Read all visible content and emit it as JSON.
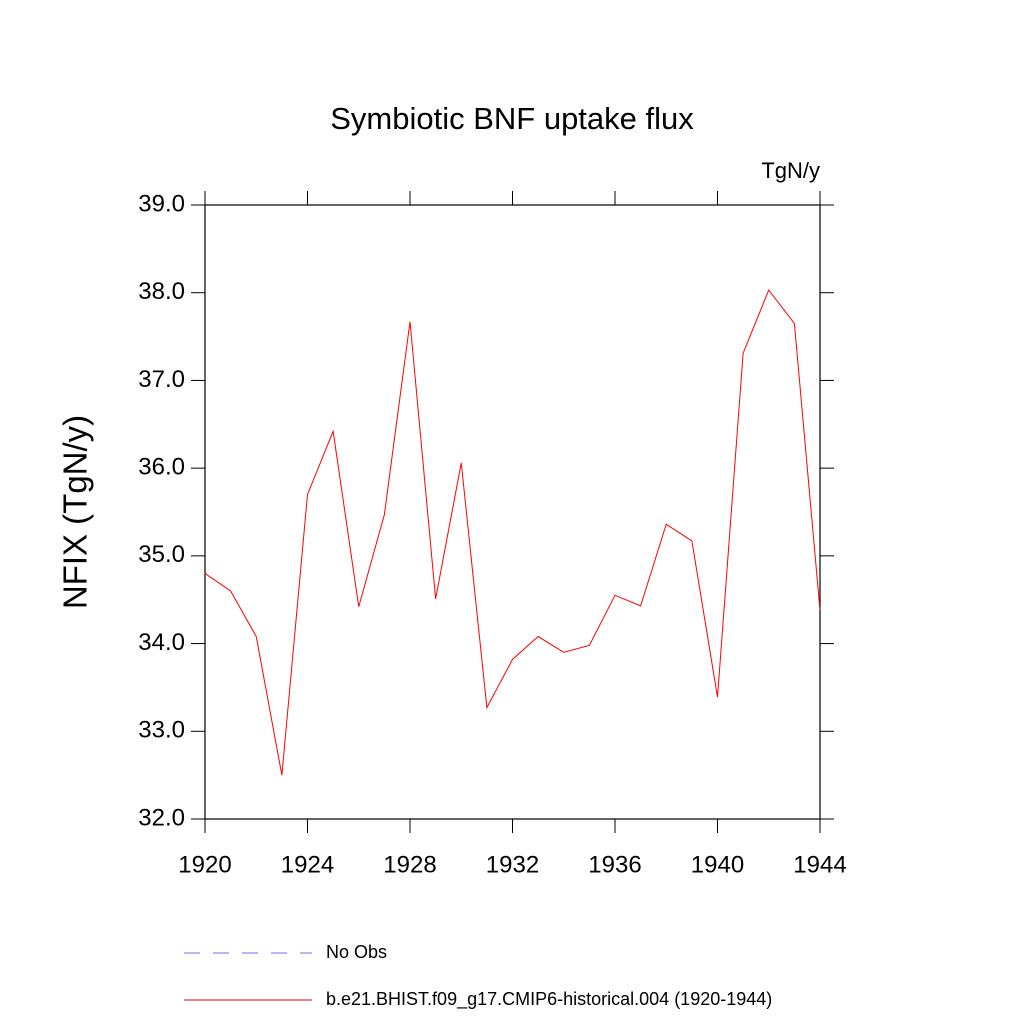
{
  "chart_data": {
    "type": "line",
    "title": "Symbiotic BNF uptake flux",
    "units": "TgN/y",
    "y_label": "NFIX  (TgN/y)",
    "x": [
      1920,
      1921,
      1922,
      1923,
      1924,
      1925,
      1926,
      1927,
      1928,
      1929,
      1930,
      1931,
      1932,
      1933,
      1934,
      1935,
      1936,
      1937,
      1938,
      1939,
      1940,
      1941,
      1942,
      1943,
      1944
    ],
    "series": [
      {
        "name": "b.e21.BHIST.f09_g17.CMIP6-historical.004 (1920-1944)",
        "color": "#ff0000",
        "values": [
          34.8,
          34.6,
          34.08,
          32.5,
          35.7,
          36.42,
          34.42,
          35.47,
          37.67,
          34.51,
          36.06,
          33.27,
          33.82,
          34.08,
          33.9,
          33.98,
          34.55,
          34.43,
          35.36,
          35.17,
          33.39,
          37.31,
          38.03,
          37.65,
          34.38
        ]
      }
    ],
    "obs": {
      "name": "No Obs",
      "color": "#7b68ee",
      "dashed": true
    },
    "xlim": [
      1920,
      1944
    ],
    "xticks": [
      1920,
      1924,
      1928,
      1932,
      1936,
      1940,
      1944
    ],
    "ylim": [
      32,
      39
    ],
    "yticks": [
      {
        "value": 32,
        "label": "32.0"
      },
      {
        "value": 33,
        "label": "33.0"
      },
      {
        "value": 34,
        "label": "34.0"
      },
      {
        "value": 35,
        "label": "35.0"
      },
      {
        "value": 36,
        "label": "36.0"
      },
      {
        "value": 37,
        "label": "37.0"
      },
      {
        "value": 38,
        "label": "38.0"
      },
      {
        "value": 39,
        "label": "39.0"
      }
    ],
    "grid": false
  }
}
